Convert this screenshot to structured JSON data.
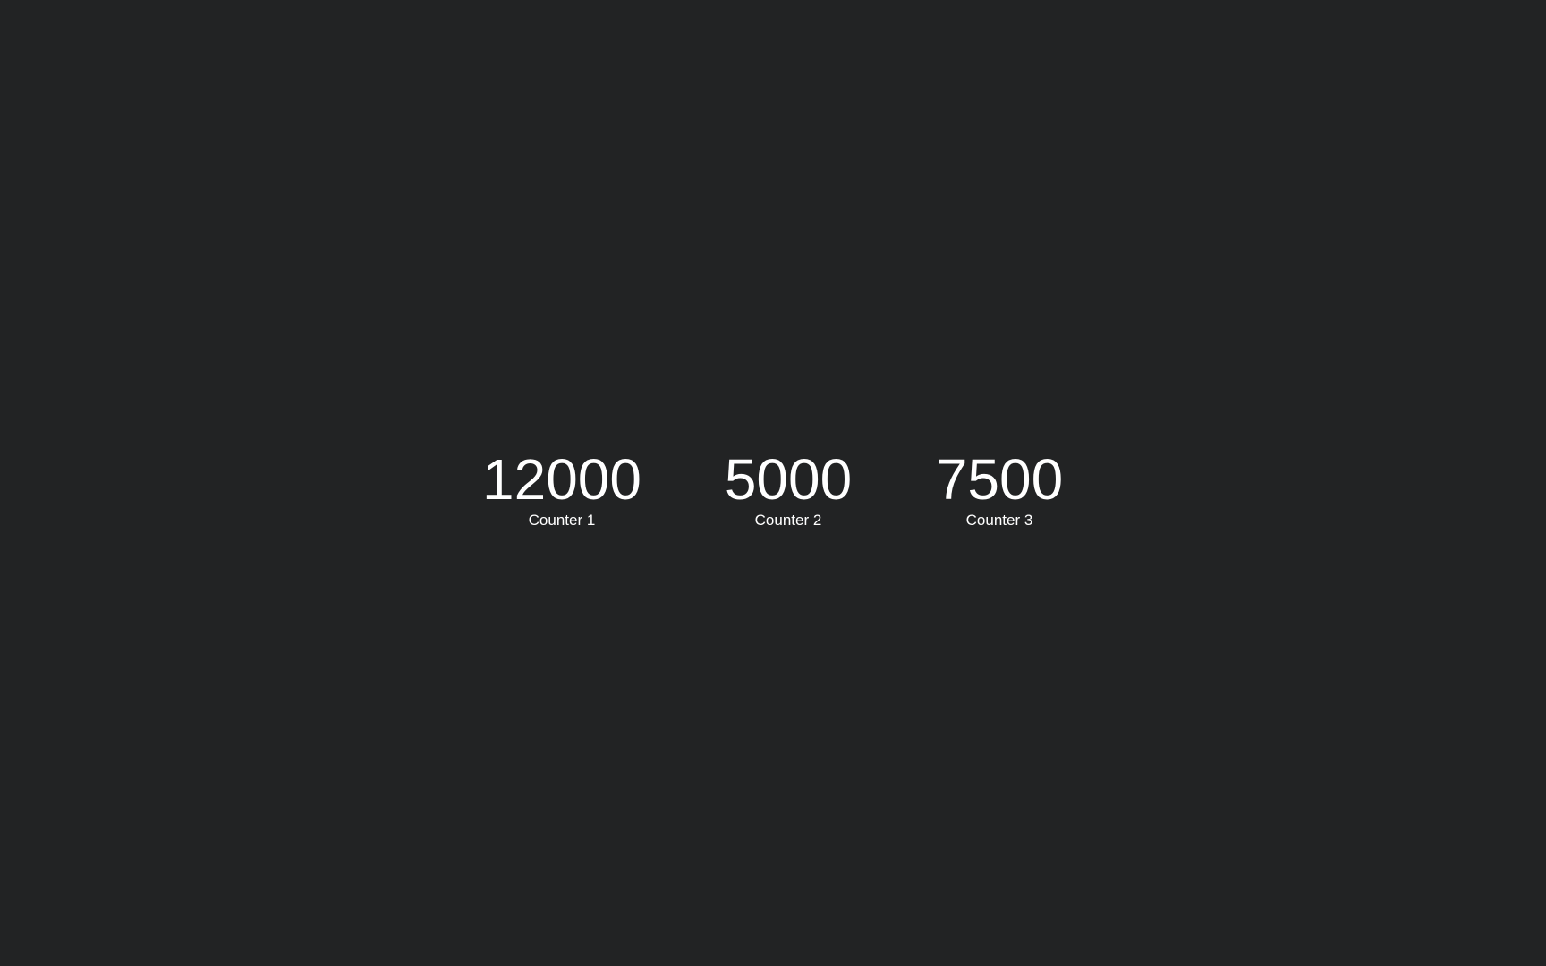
{
  "counters": [
    {
      "value": "12000",
      "label": "Counter 1"
    },
    {
      "value": "5000",
      "label": "Counter 2"
    },
    {
      "value": "7500",
      "label": "Counter 3"
    }
  ],
  "colors": {
    "background": "#222324",
    "text": "#ffffff"
  }
}
